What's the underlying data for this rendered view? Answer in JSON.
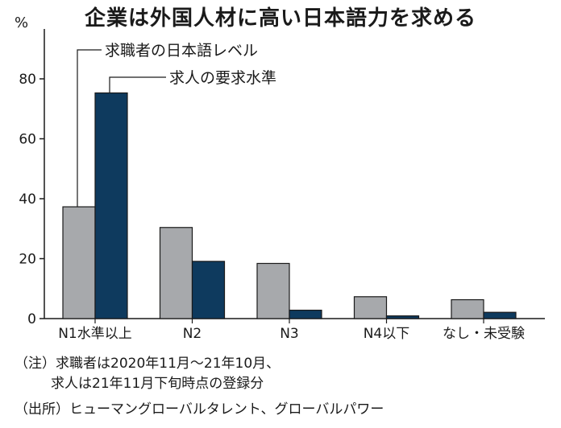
{
  "title": "企業は外国人材に高い日本語力を求める",
  "unit": "%",
  "notes": {
    "line1": "（注）求職者は2020年11月〜21年10月、",
    "line2": "求人は21年11月下旬時点の登録分",
    "source": "（出所）ヒューマングローバルタレント、グローバルパワー"
  },
  "colors": {
    "seeker": "#a7a9ac",
    "job": "#0e3a5e",
    "axis": "#1a1a1a"
  },
  "chart_data": {
    "type": "bar",
    "title": "企業は外国人材に高い日本語力を求める",
    "ylabel": "%",
    "ylim": [
      0,
      85
    ],
    "yticks": [
      0,
      20,
      40,
      60,
      80
    ],
    "categories": [
      "N1水準以上",
      "N2",
      "N3",
      "N4以下",
      "なし・未受験"
    ],
    "series": [
      {
        "name": "求職者の日本語レベル",
        "values": [
          37.3,
          30.4,
          18.4,
          7.3,
          6.3
        ]
      },
      {
        "name": "求人の要求水準",
        "values": [
          75.3,
          19.1,
          2.8,
          0.9,
          2.1
        ]
      }
    ]
  }
}
